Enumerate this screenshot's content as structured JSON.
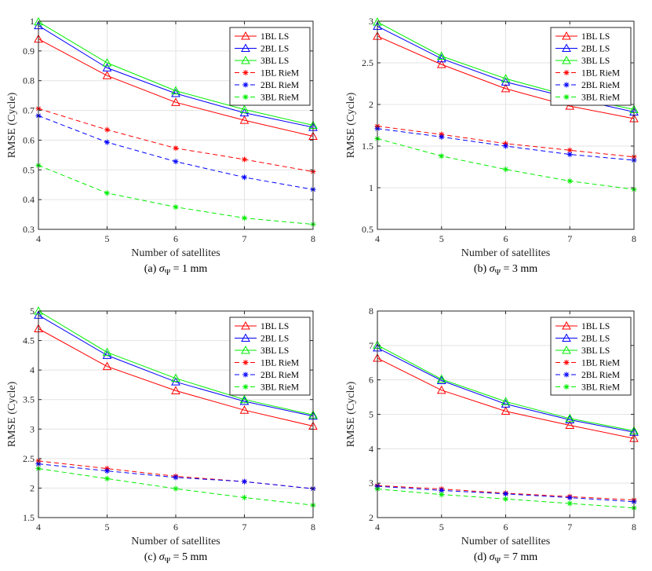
{
  "chart_data": [
    {
      "type": "line",
      "caption_prefix": "(a) ",
      "caption_symbol": "σ",
      "caption_subscript": "Ψ",
      "caption_value": " = 1 mm",
      "xlabel": "Number of satellites",
      "ylabel": "RMSE (Cycle)",
      "xlim": [
        4,
        8
      ],
      "ylim": [
        0.3,
        1
      ],
      "x": [
        4,
        5,
        6,
        7,
        8
      ],
      "x_ticks": [
        "4",
        "5",
        "6",
        "7",
        "8"
      ],
      "y_ticks": [
        "0.3",
        "0.4",
        "0.5",
        "0.6",
        "0.7",
        "0.8",
        "0.9",
        "1"
      ],
      "grid": true,
      "legend_position": "top-right",
      "series": [
        {
          "name": "1BL LS",
          "color": "#ff0000",
          "marker": "triangle",
          "dashed": false,
          "values": [
            0.94,
            0.817,
            0.727,
            0.667,
            0.613
          ]
        },
        {
          "name": "2BL LS",
          "color": "#0000ff",
          "marker": "triangle",
          "dashed": false,
          "values": [
            0.985,
            0.843,
            0.757,
            0.692,
            0.643
          ]
        },
        {
          "name": "3BL LS",
          "color": "#00ee00",
          "marker": "triangle",
          "dashed": false,
          "values": [
            0.998,
            0.86,
            0.766,
            0.703,
            0.65
          ]
        },
        {
          "name": "1BL RieM",
          "color": "#ff0000",
          "marker": "asterisk",
          "dashed": true,
          "values": [
            0.706,
            0.635,
            0.573,
            0.535,
            0.494
          ]
        },
        {
          "name": "2BL RieM",
          "color": "#0000ff",
          "marker": "asterisk",
          "dashed": true,
          "values": [
            0.682,
            0.593,
            0.528,
            0.475,
            0.434
          ]
        },
        {
          "name": "3BL RieM",
          "color": "#00ee00",
          "marker": "asterisk",
          "dashed": true,
          "values": [
            0.515,
            0.422,
            0.375,
            0.338,
            0.317
          ]
        }
      ]
    },
    {
      "type": "line",
      "caption_prefix": "(b) ",
      "caption_symbol": "σ",
      "caption_subscript": "Ψ",
      "caption_value": " = 3 mm",
      "xlabel": "Number of satellites",
      "ylabel": "RMSE (Cycle)",
      "xlim": [
        4,
        8
      ],
      "ylim": [
        0.5,
        3
      ],
      "x": [
        4,
        5,
        6,
        7,
        8
      ],
      "x_ticks": [
        "4",
        "5",
        "6",
        "7",
        "8"
      ],
      "y_ticks": [
        "0.5",
        "1",
        "1.5",
        "2",
        "2.5",
        "3"
      ],
      "grid": true,
      "legend_position": "top-right",
      "series": [
        {
          "name": "1BL LS",
          "color": "#ff0000",
          "marker": "triangle",
          "dashed": false,
          "values": [
            2.82,
            2.48,
            2.19,
            1.98,
            1.83
          ]
        },
        {
          "name": "2BL LS",
          "color": "#0000ff",
          "marker": "triangle",
          "dashed": false,
          "values": [
            2.94,
            2.55,
            2.27,
            2.08,
            1.91
          ]
        },
        {
          "name": "3BL LS",
          "color": "#00ee00",
          "marker": "triangle",
          "dashed": false,
          "values": [
            2.99,
            2.58,
            2.31,
            2.1,
            1.94
          ]
        },
        {
          "name": "1BL RieM",
          "color": "#ff0000",
          "marker": "asterisk",
          "dashed": true,
          "values": [
            1.74,
            1.64,
            1.53,
            1.45,
            1.37
          ]
        },
        {
          "name": "2BL RieM",
          "color": "#0000ff",
          "marker": "asterisk",
          "dashed": true,
          "values": [
            1.71,
            1.61,
            1.5,
            1.4,
            1.33
          ]
        },
        {
          "name": "3BL RieM",
          "color": "#00ee00",
          "marker": "asterisk",
          "dashed": true,
          "values": [
            1.59,
            1.38,
            1.22,
            1.08,
            0.98
          ]
        }
      ]
    },
    {
      "type": "line",
      "caption_prefix": "(c) ",
      "caption_symbol": "σ",
      "caption_subscript": "Ψ",
      "caption_value": " = 5 mm",
      "xlabel": "Number of satellites",
      "ylabel": "RMSE (Cycle)",
      "xlim": [
        4,
        8
      ],
      "ylim": [
        1.5,
        5
      ],
      "x": [
        4,
        5,
        6,
        7,
        8
      ],
      "x_ticks": [
        "4",
        "5",
        "6",
        "7",
        "8"
      ],
      "y_ticks": [
        "1.5",
        "2",
        "2.5",
        "3",
        "3.5",
        "4",
        "4.5",
        "5"
      ],
      "grid": true,
      "legend_position": "top-right",
      "series": [
        {
          "name": "1BL LS",
          "color": "#ff0000",
          "marker": "triangle",
          "dashed": false,
          "values": [
            4.7,
            4.06,
            3.65,
            3.32,
            3.05
          ]
        },
        {
          "name": "2BL LS",
          "color": "#0000ff",
          "marker": "triangle",
          "dashed": false,
          "values": [
            4.93,
            4.25,
            3.8,
            3.47,
            3.22
          ]
        },
        {
          "name": "3BL LS",
          "color": "#00ee00",
          "marker": "triangle",
          "dashed": false,
          "values": [
            5.0,
            4.3,
            3.86,
            3.5,
            3.24
          ]
        },
        {
          "name": "1BL RieM",
          "color": "#ff0000",
          "marker": "asterisk",
          "dashed": true,
          "values": [
            2.46,
            2.33,
            2.2,
            2.11,
            1.99
          ]
        },
        {
          "name": "2BL RieM",
          "color": "#0000ff",
          "marker": "asterisk",
          "dashed": true,
          "values": [
            2.41,
            2.29,
            2.18,
            2.11,
            1.99
          ]
        },
        {
          "name": "3BL RieM",
          "color": "#00ee00",
          "marker": "asterisk",
          "dashed": true,
          "values": [
            2.33,
            2.16,
            1.99,
            1.84,
            1.71
          ]
        }
      ]
    },
    {
      "type": "line",
      "caption_prefix": "(d) ",
      "caption_symbol": "σ",
      "caption_subscript": "Ψ",
      "caption_value": " = 7 mm",
      "xlabel": "Number of satellites",
      "ylabel": "RMSE (Cycle)",
      "xlim": [
        4,
        8
      ],
      "ylim": [
        2,
        8
      ],
      "x": [
        4,
        5,
        6,
        7,
        8
      ],
      "x_ticks": [
        "4",
        "5",
        "6",
        "7",
        "8"
      ],
      "y_ticks": [
        "2",
        "3",
        "4",
        "5",
        "6",
        "7",
        "8"
      ],
      "grid": true,
      "legend_position": "top-right",
      "series": [
        {
          "name": "1BL LS",
          "color": "#ff0000",
          "marker": "triangle",
          "dashed": false,
          "values": [
            6.63,
            5.7,
            5.09,
            4.68,
            4.3
          ]
        },
        {
          "name": "2BL LS",
          "color": "#0000ff",
          "marker": "triangle",
          "dashed": false,
          "values": [
            6.93,
            5.98,
            5.3,
            4.84,
            4.48
          ]
        },
        {
          "name": "3BL LS",
          "color": "#00ee00",
          "marker": "triangle",
          "dashed": false,
          "values": [
            7.01,
            6.02,
            5.37,
            4.88,
            4.52
          ]
        },
        {
          "name": "1BL RieM",
          "color": "#ff0000",
          "marker": "asterisk",
          "dashed": true,
          "values": [
            2.93,
            2.83,
            2.71,
            2.61,
            2.51
          ]
        },
        {
          "name": "2BL RieM",
          "color": "#0000ff",
          "marker": "asterisk",
          "dashed": true,
          "values": [
            2.91,
            2.79,
            2.69,
            2.58,
            2.46
          ]
        },
        {
          "name": "3BL RieM",
          "color": "#00ee00",
          "marker": "asterisk",
          "dashed": true,
          "values": [
            2.83,
            2.67,
            2.54,
            2.41,
            2.28
          ]
        }
      ]
    }
  ]
}
